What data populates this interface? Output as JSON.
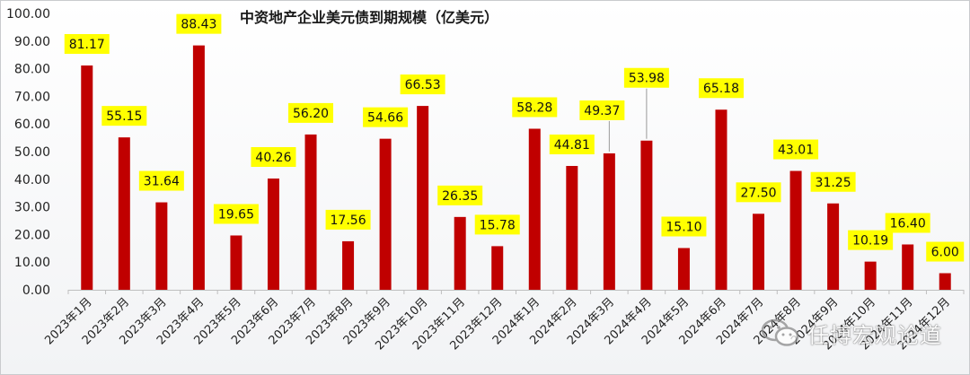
{
  "chart_data": {
    "type": "bar",
    "title": "中资地产企业美元债到期规模（亿美元）",
    "categories": [
      "2023年1月",
      "2023年2月",
      "2023年3月",
      "2023年4月",
      "2023年5月",
      "2023年6月",
      "2023年7月",
      "2023年8月",
      "2023年9月",
      "2023年10月",
      "2023年11月",
      "2023年12月",
      "2024年1月",
      "2024年2月",
      "2024年3月",
      "2024年4月",
      "2024年5月",
      "2024年6月",
      "2024年7月",
      "2024年8月",
      "2024年9月",
      "2024年10月",
      "2024年11月",
      "2024年12月"
    ],
    "values": [
      81.17,
      55.15,
      31.64,
      88.43,
      19.65,
      40.26,
      56.2,
      17.56,
      54.66,
      66.53,
      26.35,
      15.78,
      58.28,
      44.81,
      49.37,
      53.98,
      15.1,
      65.18,
      27.5,
      43.01,
      31.25,
      10.19,
      16.4,
      6.0
    ],
    "data_labels": [
      "81.17",
      "55.15",
      "31.64",
      "88.43",
      "19.65",
      "40.26",
      "56.20",
      "17.56",
      "54.66",
      "66.53",
      "26.35",
      "15.78",
      "58.28",
      "44.81",
      "49.37",
      "53.98",
      "15.10",
      "65.18",
      "27.50",
      "43.01",
      "31.25",
      "10.19",
      "16.40",
      "6.00"
    ],
    "yticks": [
      "0.00",
      "10.00",
      "20.00",
      "30.00",
      "40.00",
      "50.00",
      "60.00",
      "70.00",
      "80.00",
      "90.00",
      "100.00"
    ],
    "ylim": [
      0,
      100
    ],
    "xlabel": "",
    "ylabel": "",
    "grid": false,
    "bar_color": "#c00000",
    "label_bg_color": "#ffff00"
  },
  "watermark": {
    "text": "任博宏观论道",
    "icon": "wechat-icon"
  }
}
